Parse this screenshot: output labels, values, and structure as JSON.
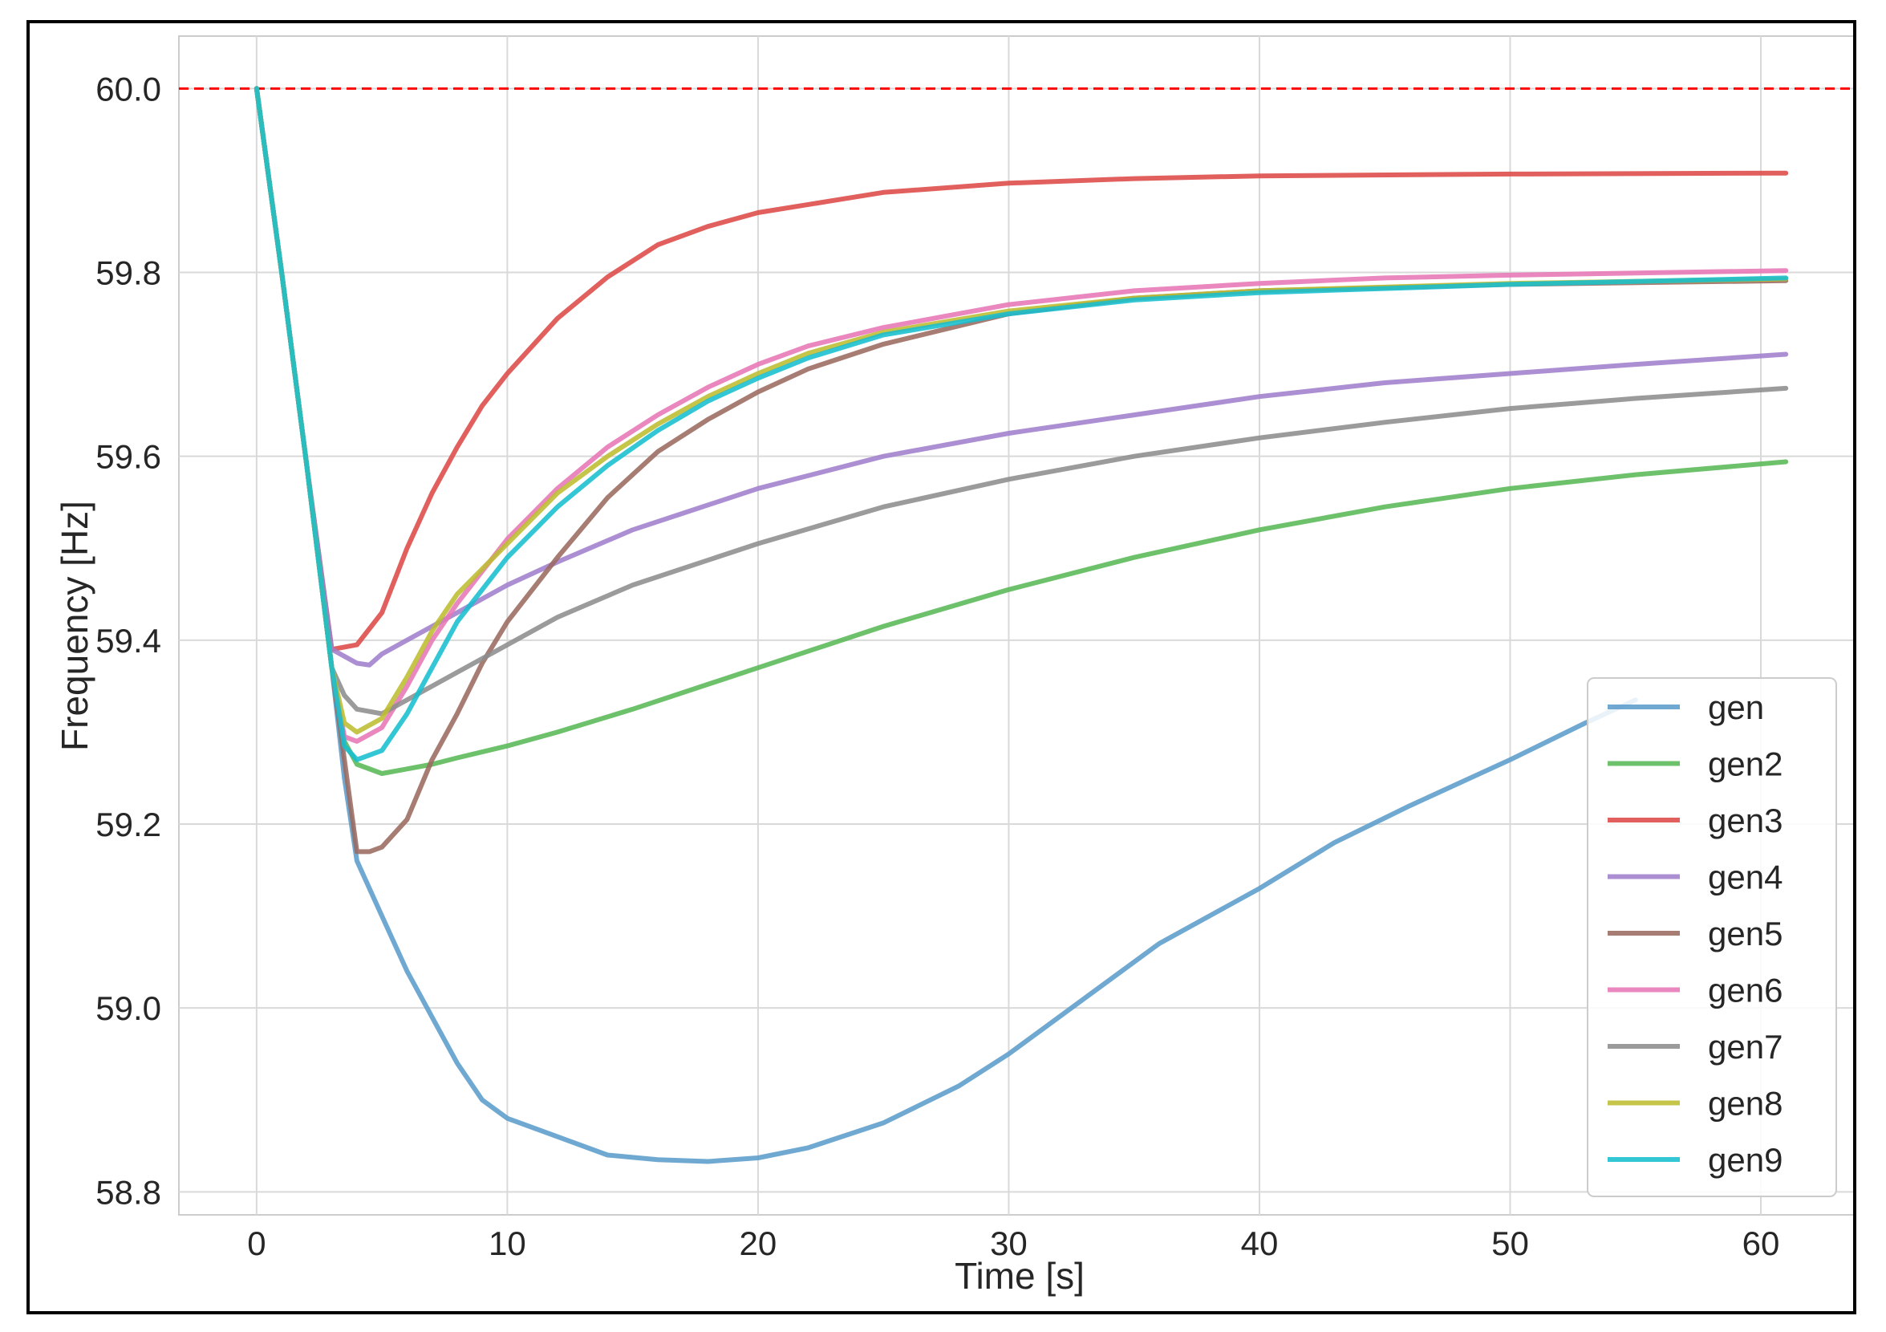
{
  "chart_data": {
    "type": "line",
    "title": "",
    "xlabel": "Time [s]",
    "ylabel": "Frequency [Hz]",
    "xlim": [
      -3.1,
      64.0
    ],
    "ylim": [
      58.775,
      60.057
    ],
    "xticks": [
      0,
      10,
      20,
      30,
      40,
      50,
      60
    ],
    "yticks": [
      58.8,
      59.0,
      59.2,
      59.4,
      59.6,
      59.8,
      60.0
    ],
    "xtick_labels": [
      "0",
      "10",
      "20",
      "30",
      "40",
      "50",
      "60"
    ],
    "ytick_labels": [
      "58.8",
      "59.0",
      "59.2",
      "59.4",
      "59.6",
      "59.8",
      "60.0"
    ],
    "grid": true,
    "legend_position": "lower right",
    "reference_line": {
      "y": 60.0,
      "color": "#ff0000",
      "style": "dashed"
    },
    "series": [
      {
        "name": "gen",
        "color": "#5b9ccb",
        "points": [
          [
            0,
            60.0
          ],
          [
            1,
            59.8
          ],
          [
            2,
            59.59
          ],
          [
            3,
            59.37
          ],
          [
            3.5,
            59.25
          ],
          [
            4,
            59.16
          ],
          [
            5,
            59.1
          ],
          [
            6,
            59.04
          ],
          [
            7,
            58.99
          ],
          [
            8,
            58.94
          ],
          [
            9,
            58.9
          ],
          [
            10,
            58.88
          ],
          [
            12,
            58.86
          ],
          [
            14,
            58.84
          ],
          [
            16,
            58.835
          ],
          [
            18,
            58.833
          ],
          [
            20,
            58.837
          ],
          [
            22,
            58.848
          ],
          [
            25,
            58.875
          ],
          [
            28,
            58.915
          ],
          [
            30,
            58.95
          ],
          [
            33,
            59.01
          ],
          [
            36,
            59.07
          ],
          [
            40,
            59.13
          ],
          [
            43,
            59.18
          ],
          [
            46,
            59.22
          ],
          [
            50,
            59.27
          ],
          [
            53,
            59.31
          ],
          [
            55,
            59.335
          ]
        ]
      },
      {
        "name": "gen2",
        "color": "#59b857",
        "points": [
          [
            0,
            60.0
          ],
          [
            1,
            59.8
          ],
          [
            2,
            59.59
          ],
          [
            3,
            59.37
          ],
          [
            3.5,
            59.29
          ],
          [
            4,
            59.265
          ],
          [
            5,
            59.255
          ],
          [
            6,
            59.26
          ],
          [
            7,
            59.265
          ],
          [
            8,
            59.272
          ],
          [
            10,
            59.285
          ],
          [
            12,
            59.3
          ],
          [
            15,
            59.325
          ],
          [
            20,
            59.37
          ],
          [
            25,
            59.415
          ],
          [
            30,
            59.455
          ],
          [
            35,
            59.49
          ],
          [
            40,
            59.52
          ],
          [
            45,
            59.545
          ],
          [
            50,
            59.565
          ],
          [
            55,
            59.58
          ],
          [
            61,
            59.594
          ]
        ]
      },
      {
        "name": "gen3",
        "color": "#dd4a48",
        "points": [
          [
            0,
            60.0
          ],
          [
            1,
            59.8
          ],
          [
            2,
            59.59
          ],
          [
            3,
            59.39
          ],
          [
            4,
            59.395
          ],
          [
            5,
            59.43
          ],
          [
            6,
            59.5
          ],
          [
            7,
            59.56
          ],
          [
            8,
            59.61
          ],
          [
            9,
            59.655
          ],
          [
            10,
            59.69
          ],
          [
            12,
            59.75
          ],
          [
            14,
            59.795
          ],
          [
            16,
            59.83
          ],
          [
            18,
            59.85
          ],
          [
            20,
            59.865
          ],
          [
            25,
            59.887
          ],
          [
            30,
            59.897
          ],
          [
            35,
            59.902
          ],
          [
            40,
            59.905
          ],
          [
            50,
            59.907
          ],
          [
            61,
            59.908
          ]
        ]
      },
      {
        "name": "gen4",
        "color": "#a07fcc",
        "points": [
          [
            0,
            60.0
          ],
          [
            1,
            59.8
          ],
          [
            2,
            59.59
          ],
          [
            3,
            59.39
          ],
          [
            4,
            59.375
          ],
          [
            4.5,
            59.373
          ],
          [
            5,
            59.385
          ],
          [
            6,
            59.4
          ],
          [
            8,
            59.43
          ],
          [
            10,
            59.46
          ],
          [
            12,
            59.485
          ],
          [
            15,
            59.52
          ],
          [
            20,
            59.565
          ],
          [
            25,
            59.6
          ],
          [
            30,
            59.625
          ],
          [
            35,
            59.645
          ],
          [
            40,
            59.665
          ],
          [
            45,
            59.68
          ],
          [
            50,
            59.69
          ],
          [
            55,
            59.7
          ],
          [
            61,
            59.711
          ]
        ]
      },
      {
        "name": "gen5",
        "color": "#9b6a5f",
        "points": [
          [
            0,
            60.0
          ],
          [
            1,
            59.8
          ],
          [
            2,
            59.59
          ],
          [
            3,
            59.37
          ],
          [
            3.5,
            59.27
          ],
          [
            4,
            59.17
          ],
          [
            4.5,
            59.17
          ],
          [
            5,
            59.175
          ],
          [
            6,
            59.205
          ],
          [
            7,
            59.27
          ],
          [
            8,
            59.32
          ],
          [
            9,
            59.375
          ],
          [
            10,
            59.42
          ],
          [
            12,
            59.49
          ],
          [
            14,
            59.555
          ],
          [
            16,
            59.605
          ],
          [
            18,
            59.64
          ],
          [
            20,
            59.67
          ],
          [
            22,
            59.695
          ],
          [
            25,
            59.722
          ],
          [
            30,
            59.755
          ],
          [
            35,
            59.772
          ],
          [
            40,
            59.78
          ],
          [
            50,
            59.787
          ],
          [
            61,
            59.791
          ]
        ]
      },
      {
        "name": "gen6",
        "color": "#e676b5",
        "points": [
          [
            0,
            60.0
          ],
          [
            1,
            59.8
          ],
          [
            2,
            59.59
          ],
          [
            3,
            59.37
          ],
          [
            3.5,
            59.295
          ],
          [
            4,
            59.29
          ],
          [
            5,
            59.305
          ],
          [
            6,
            59.35
          ],
          [
            7,
            59.4
          ],
          [
            8,
            59.44
          ],
          [
            10,
            59.51
          ],
          [
            12,
            59.565
          ],
          [
            14,
            59.61
          ],
          [
            16,
            59.645
          ],
          [
            18,
            59.675
          ],
          [
            20,
            59.7
          ],
          [
            22,
            59.72
          ],
          [
            25,
            59.74
          ],
          [
            30,
            59.765
          ],
          [
            35,
            59.78
          ],
          [
            40,
            59.788
          ],
          [
            45,
            59.794
          ],
          [
            50,
            59.797
          ],
          [
            61,
            59.802
          ]
        ]
      },
      {
        "name": "gen7",
        "color": "#8d8d8d",
        "points": [
          [
            0,
            60.0
          ],
          [
            1,
            59.8
          ],
          [
            2,
            59.59
          ],
          [
            3,
            59.37
          ],
          [
            3.5,
            59.34
          ],
          [
            4,
            59.325
          ],
          [
            5,
            59.32
          ],
          [
            6,
            59.335
          ],
          [
            8,
            59.365
          ],
          [
            10,
            59.395
          ],
          [
            12,
            59.425
          ],
          [
            15,
            59.46
          ],
          [
            20,
            59.505
          ],
          [
            25,
            59.545
          ],
          [
            30,
            59.575
          ],
          [
            35,
            59.6
          ],
          [
            40,
            59.62
          ],
          [
            45,
            59.637
          ],
          [
            50,
            59.652
          ],
          [
            55,
            59.663
          ],
          [
            61,
            59.674
          ]
        ]
      },
      {
        "name": "gen8",
        "color": "#bdbd31",
        "points": [
          [
            0,
            60.0
          ],
          [
            1,
            59.8
          ],
          [
            2,
            59.59
          ],
          [
            3,
            59.37
          ],
          [
            3.5,
            59.31
          ],
          [
            4,
            59.3
          ],
          [
            5,
            59.315
          ],
          [
            6,
            59.36
          ],
          [
            7,
            59.41
          ],
          [
            8,
            59.45
          ],
          [
            10,
            59.505
          ],
          [
            12,
            59.56
          ],
          [
            14,
            59.6
          ],
          [
            16,
            59.635
          ],
          [
            18,
            59.665
          ],
          [
            20,
            59.69
          ],
          [
            22,
            59.712
          ],
          [
            25,
            59.735
          ],
          [
            30,
            59.758
          ],
          [
            35,
            59.772
          ],
          [
            40,
            59.78
          ],
          [
            50,
            59.788
          ],
          [
            61,
            59.793
          ]
        ]
      },
      {
        "name": "gen9",
        "color": "#17becf",
        "points": [
          [
            0,
            60.0
          ],
          [
            1,
            59.8
          ],
          [
            2,
            59.59
          ],
          [
            3,
            59.37
          ],
          [
            3.5,
            59.285
          ],
          [
            4,
            59.27
          ],
          [
            5,
            59.28
          ],
          [
            6,
            59.32
          ],
          [
            7,
            59.37
          ],
          [
            8,
            59.42
          ],
          [
            10,
            59.49
          ],
          [
            12,
            59.545
          ],
          [
            14,
            59.59
          ],
          [
            16,
            59.628
          ],
          [
            18,
            59.66
          ],
          [
            20,
            59.685
          ],
          [
            22,
            59.707
          ],
          [
            25,
            59.732
          ],
          [
            30,
            59.755
          ],
          [
            35,
            59.77
          ],
          [
            40,
            59.778
          ],
          [
            50,
            59.787
          ],
          [
            61,
            59.794
          ]
        ]
      }
    ]
  }
}
